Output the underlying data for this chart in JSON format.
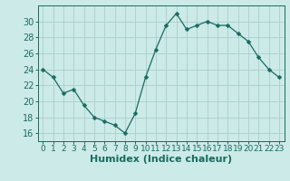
{
  "x": [
    0,
    1,
    2,
    3,
    4,
    5,
    6,
    7,
    8,
    9,
    10,
    11,
    12,
    13,
    14,
    15,
    16,
    17,
    18,
    19,
    20,
    21,
    22,
    23
  ],
  "y": [
    24.0,
    23.0,
    21.0,
    21.5,
    19.5,
    18.0,
    17.5,
    17.0,
    16.0,
    18.5,
    23.0,
    26.5,
    29.5,
    31.0,
    29.0,
    29.5,
    30.0,
    29.5,
    29.5,
    28.5,
    27.5,
    25.5,
    24.0,
    23.0
  ],
  "xlabel": "Humidex (Indice chaleur)",
  "ylim": [
    15,
    32
  ],
  "xlim": [
    -0.5,
    23.5
  ],
  "yticks": [
    16,
    18,
    20,
    22,
    24,
    26,
    28,
    30
  ],
  "line_color": "#1a6b60",
  "marker": "D",
  "marker_size": 2.5,
  "bg_color": "#cceae8",
  "grid_color": "#aacfcc",
  "tick_color": "#1a6b60",
  "label_color": "#1a6b60",
  "xlabel_fontsize": 8,
  "tick_fontsize": 7
}
